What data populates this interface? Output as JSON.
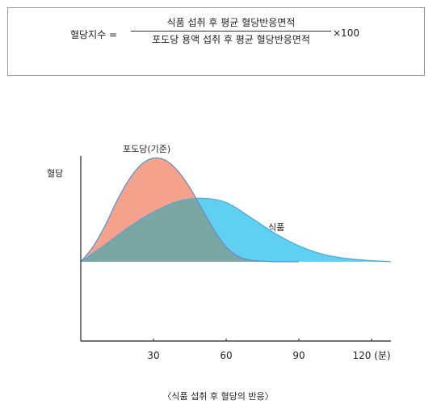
{
  "formula": {
    "lhs": "혈당지수 =",
    "numerator": "식품 섭취 후 평균 혈당반응면적",
    "denominator": "포도당 용액 섭취 후 평균 혈당반응면적",
    "rhs": "×100"
  },
  "chart_data": {
    "type": "area",
    "title": "",
    "caption": "〈식품 섭취 후 혈당의 반응〉",
    "ylabel": "혈당",
    "xlabel": "",
    "x_ticks": [
      "30",
      "60",
      "90",
      "120 (분)"
    ],
    "x_tick_values": [
      30,
      60,
      90,
      120
    ],
    "xlim": [
      0,
      128
    ],
    "ylim": [
      -0.75,
      1.0
    ],
    "series": [
      {
        "name": "포도당(기준)",
        "color": "#f4a28c",
        "x": [
          0,
          5,
          10,
          15,
          20,
          25,
          30,
          35,
          40,
          45,
          50,
          55,
          60,
          65,
          70,
          75,
          80,
          85,
          90
        ],
        "y": [
          0,
          0.14,
          0.34,
          0.58,
          0.78,
          0.92,
          0.98,
          0.96,
          0.86,
          0.7,
          0.5,
          0.3,
          0.14,
          0.05,
          0.015,
          0.005,
          0,
          0,
          0
        ]
      },
      {
        "name": "식품",
        "color": "#5fd0f0",
        "x": [
          0,
          10,
          20,
          30,
          40,
          50,
          60,
          70,
          80,
          90,
          100,
          110,
          120,
          128
        ],
        "y": [
          0,
          0.16,
          0.33,
          0.47,
          0.57,
          0.6,
          0.56,
          0.42,
          0.27,
          0.15,
          0.07,
          0.03,
          0.01,
          0
        ]
      }
    ],
    "overlap_color": "#7aa7a4",
    "grid": false,
    "legend": "none"
  }
}
